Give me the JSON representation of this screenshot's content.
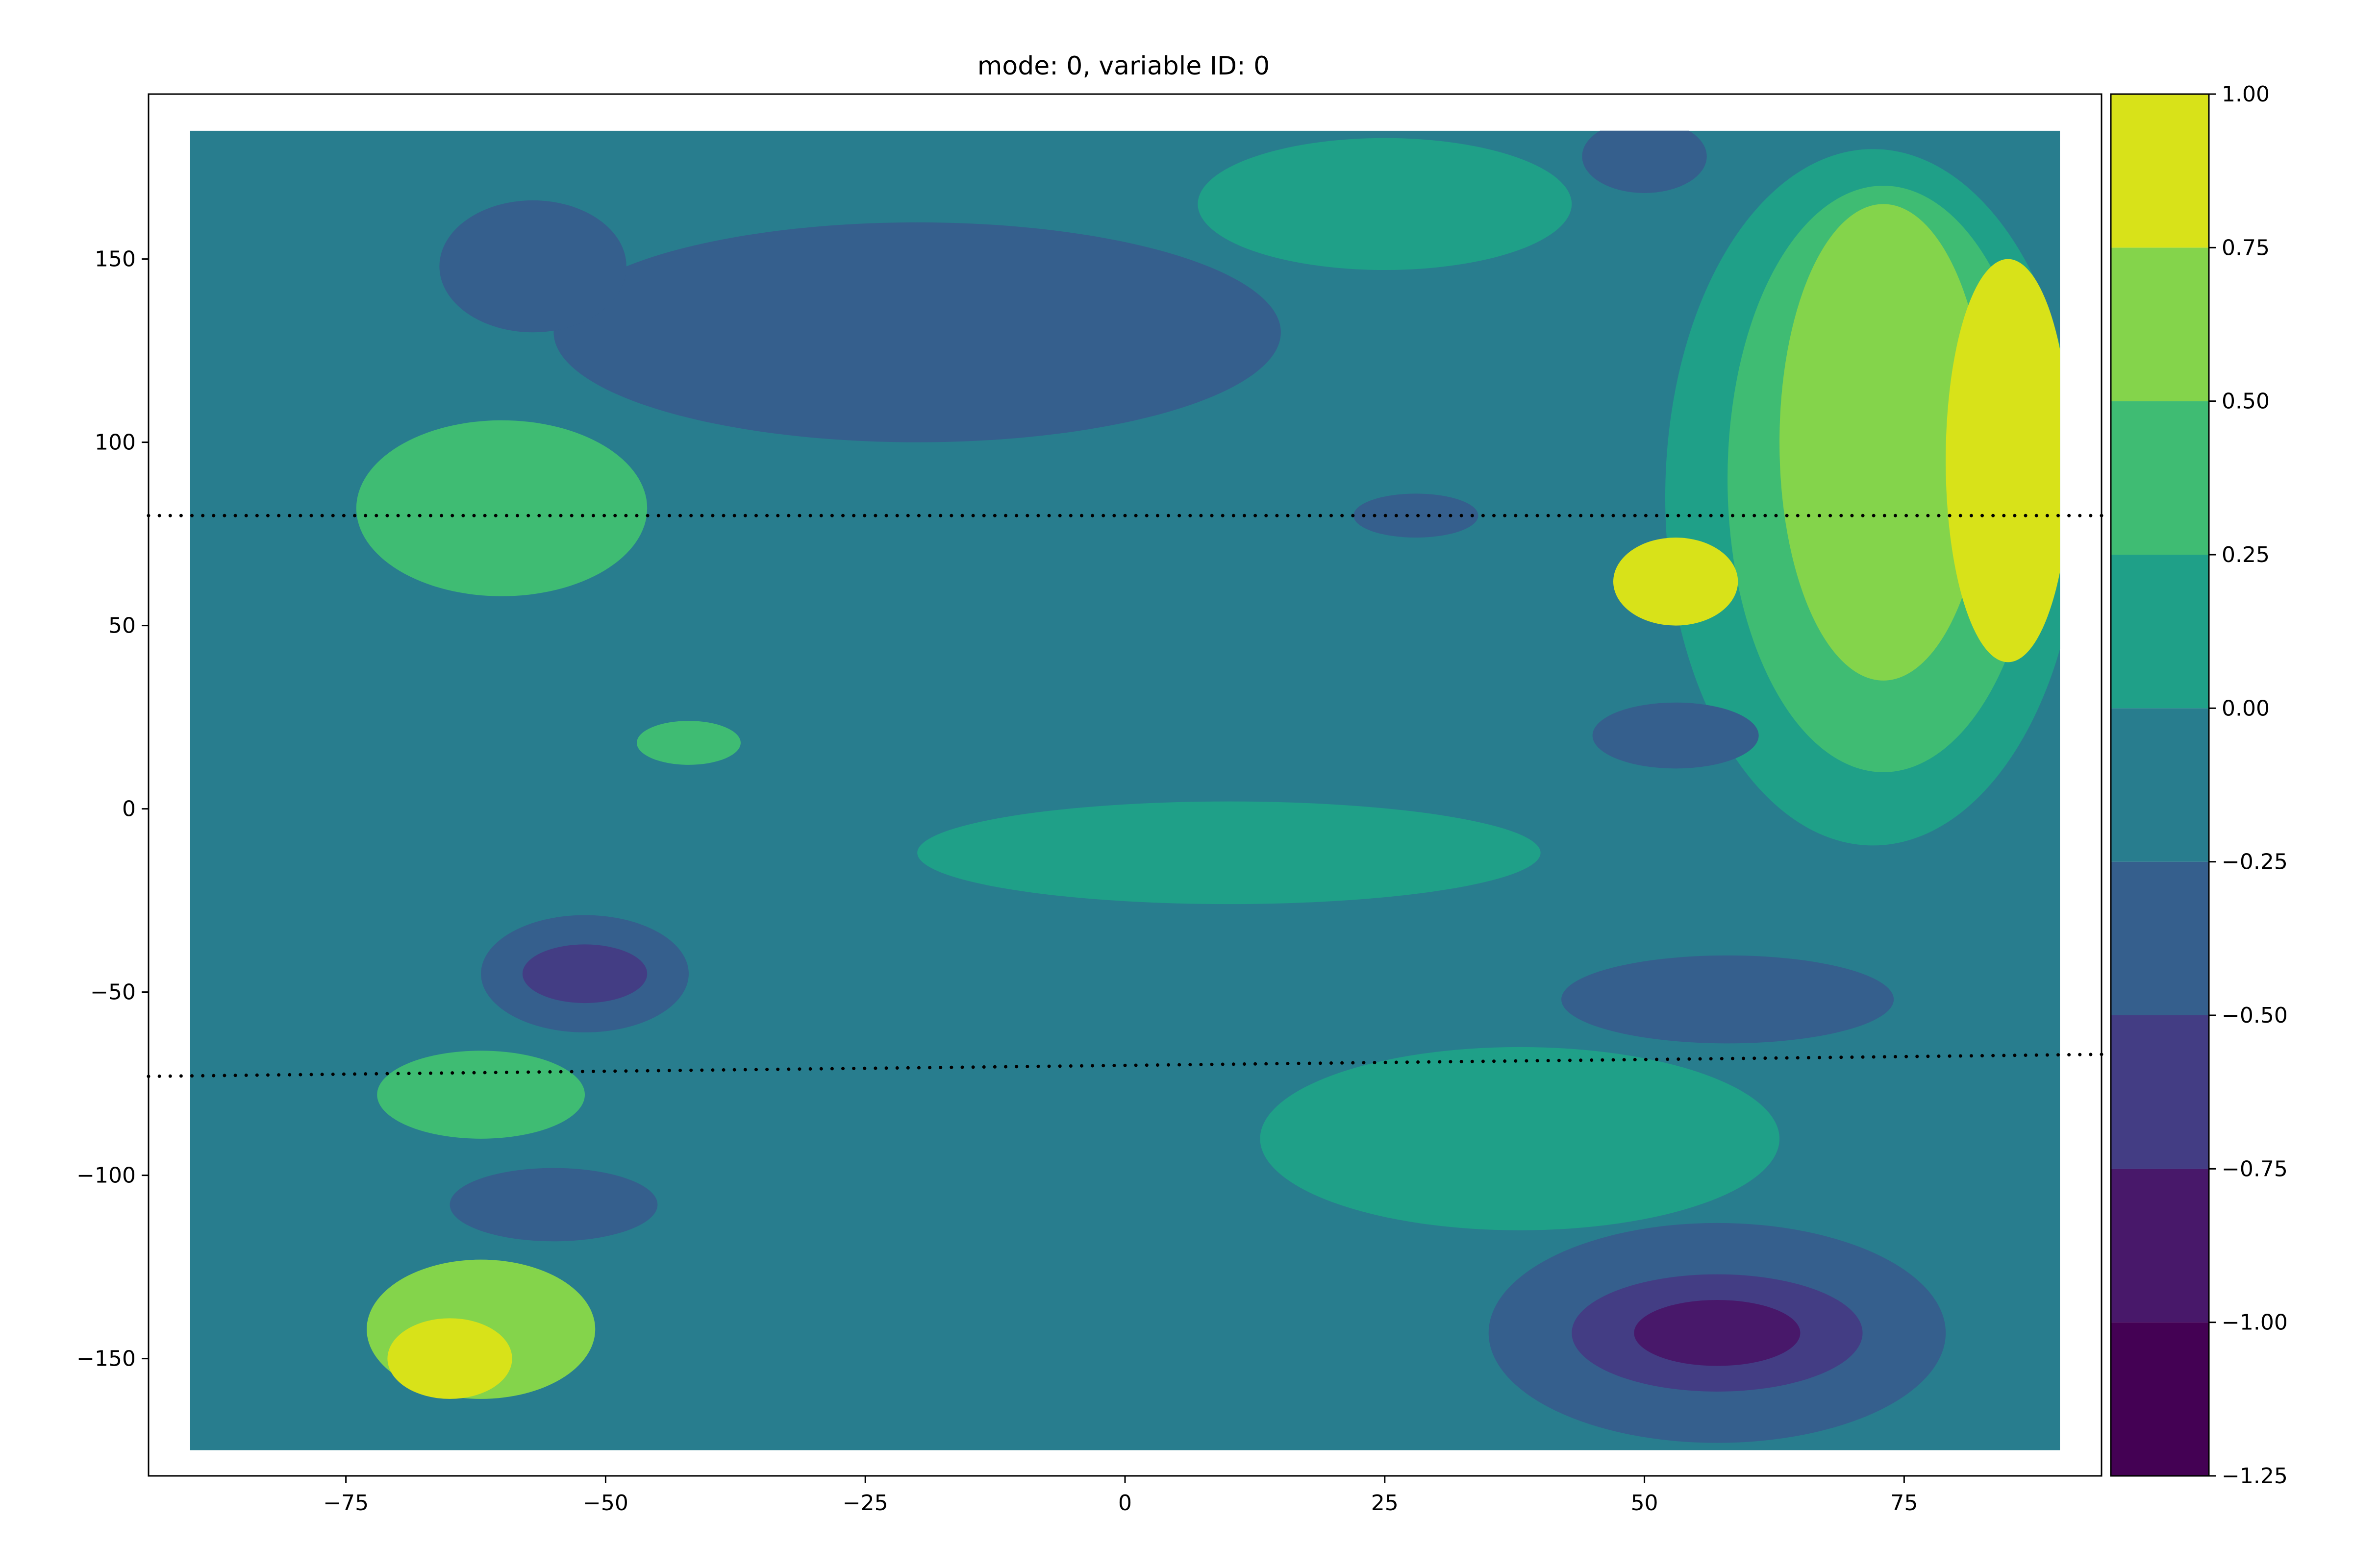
{
  "chart_data": {
    "type": "heatmap",
    "title": "mode: 0, variable ID: 0",
    "xlabel": "",
    "ylabel": "",
    "xlim": [
      -94,
      94
    ],
    "ylim": [
      -182,
      195
    ],
    "x_ticks": [
      -75,
      -50,
      -25,
      0,
      25,
      50,
      75
    ],
    "x_tick_labels": [
      "−75",
      "−50",
      "−25",
      "0",
      "25",
      "50",
      "75"
    ],
    "y_ticks": [
      -150,
      -100,
      -50,
      0,
      50,
      100,
      150
    ],
    "y_tick_labels": [
      "−150",
      "−100",
      "−50",
      "0",
      "50",
      "100",
      "150"
    ],
    "data_extent": {
      "x": [
        -90,
        90
      ],
      "y": [
        -175,
        185
      ]
    },
    "colormap": "viridis",
    "colorbar": {
      "levels": [
        -1.25,
        -1.0,
        -0.75,
        -0.5,
        -0.25,
        0.0,
        0.25,
        0.5,
        0.75,
        1.0
      ],
      "tick_labels": [
        "−1.25",
        "−1.00",
        "−0.75",
        "−0.50",
        "−0.25",
        "0.00",
        "0.25",
        "0.50",
        "0.75",
        "1.00"
      ],
      "colors": [
        "#440154",
        "#48186a",
        "#433d84",
        "#355f8d",
        "#287d8e",
        "#1fa088",
        "#3fbc73",
        "#84d44b",
        "#d8e219"
      ]
    },
    "background_color": "#287d8e",
    "regions": [
      {
        "x": -62,
        "y": -142,
        "rx": 11,
        "ry": 19,
        "value": 0.55
      },
      {
        "x": -65,
        "y": -150,
        "rx": 6,
        "ry": 11,
        "value": 0.85
      },
      {
        "x": 57,
        "y": -143,
        "rx": 22,
        "ry": 30,
        "value": -0.4
      },
      {
        "x": 57,
        "y": -143,
        "rx": 14,
        "ry": 16,
        "value": -0.65
      },
      {
        "x": 57,
        "y": -143,
        "rx": 8,
        "ry": 9,
        "value": -0.9
      },
      {
        "x": -52,
        "y": -45,
        "rx": 10,
        "ry": 16,
        "value": -0.4
      },
      {
        "x": -52,
        "y": -45,
        "rx": 6,
        "ry": 8,
        "value": -0.65
      },
      {
        "x": -55,
        "y": -108,
        "rx": 10,
        "ry": 10,
        "value": -0.4
      },
      {
        "x": -20,
        "y": 130,
        "rx": 35,
        "ry": 30,
        "value": -0.4
      },
      {
        "x": -57,
        "y": 148,
        "rx": 9,
        "ry": 18,
        "value": -0.4
      },
      {
        "x": -60,
        "y": 82,
        "rx": 14,
        "ry": 24,
        "value": 0.35
      },
      {
        "x": -62,
        "y": -78,
        "rx": 10,
        "ry": 12,
        "value": 0.35
      },
      {
        "x": -42,
        "y": 18,
        "rx": 5,
        "ry": 6,
        "value": 0.35
      },
      {
        "x": 25,
        "y": 165,
        "rx": 18,
        "ry": 18,
        "value": 0.1
      },
      {
        "x": 38,
        "y": -90,
        "rx": 25,
        "ry": 25,
        "value": 0.1
      },
      {
        "x": 10,
        "y": -12,
        "rx": 30,
        "ry": 14,
        "value": 0.1
      },
      {
        "x": 72,
        "y": 85,
        "rx": 20,
        "ry": 95,
        "value": 0.1
      },
      {
        "x": 73,
        "y": 90,
        "rx": 15,
        "ry": 80,
        "value": 0.35
      },
      {
        "x": 73,
        "y": 100,
        "rx": 10,
        "ry": 65,
        "value": 0.6
      },
      {
        "x": 85,
        "y": 95,
        "rx": 6,
        "ry": 55,
        "value": 0.85
      },
      {
        "x": 53,
        "y": 62,
        "rx": 6,
        "ry": 12,
        "value": 0.85
      },
      {
        "x": 58,
        "y": -52,
        "rx": 16,
        "ry": 12,
        "value": -0.4
      },
      {
        "x": 53,
        "y": 20,
        "rx": 8,
        "ry": 9,
        "value": -0.4
      },
      {
        "x": 50,
        "y": 178,
        "rx": 6,
        "ry": 10,
        "value": -0.4
      },
      {
        "x": 28,
        "y": 80,
        "rx": 6,
        "ry": 6,
        "value": -0.4
      }
    ],
    "coastline_dotted_lines": [
      {
        "y_start": 80,
        "y_end": 80
      },
      {
        "y_start": -73,
        "y_end": -67
      }
    ]
  }
}
